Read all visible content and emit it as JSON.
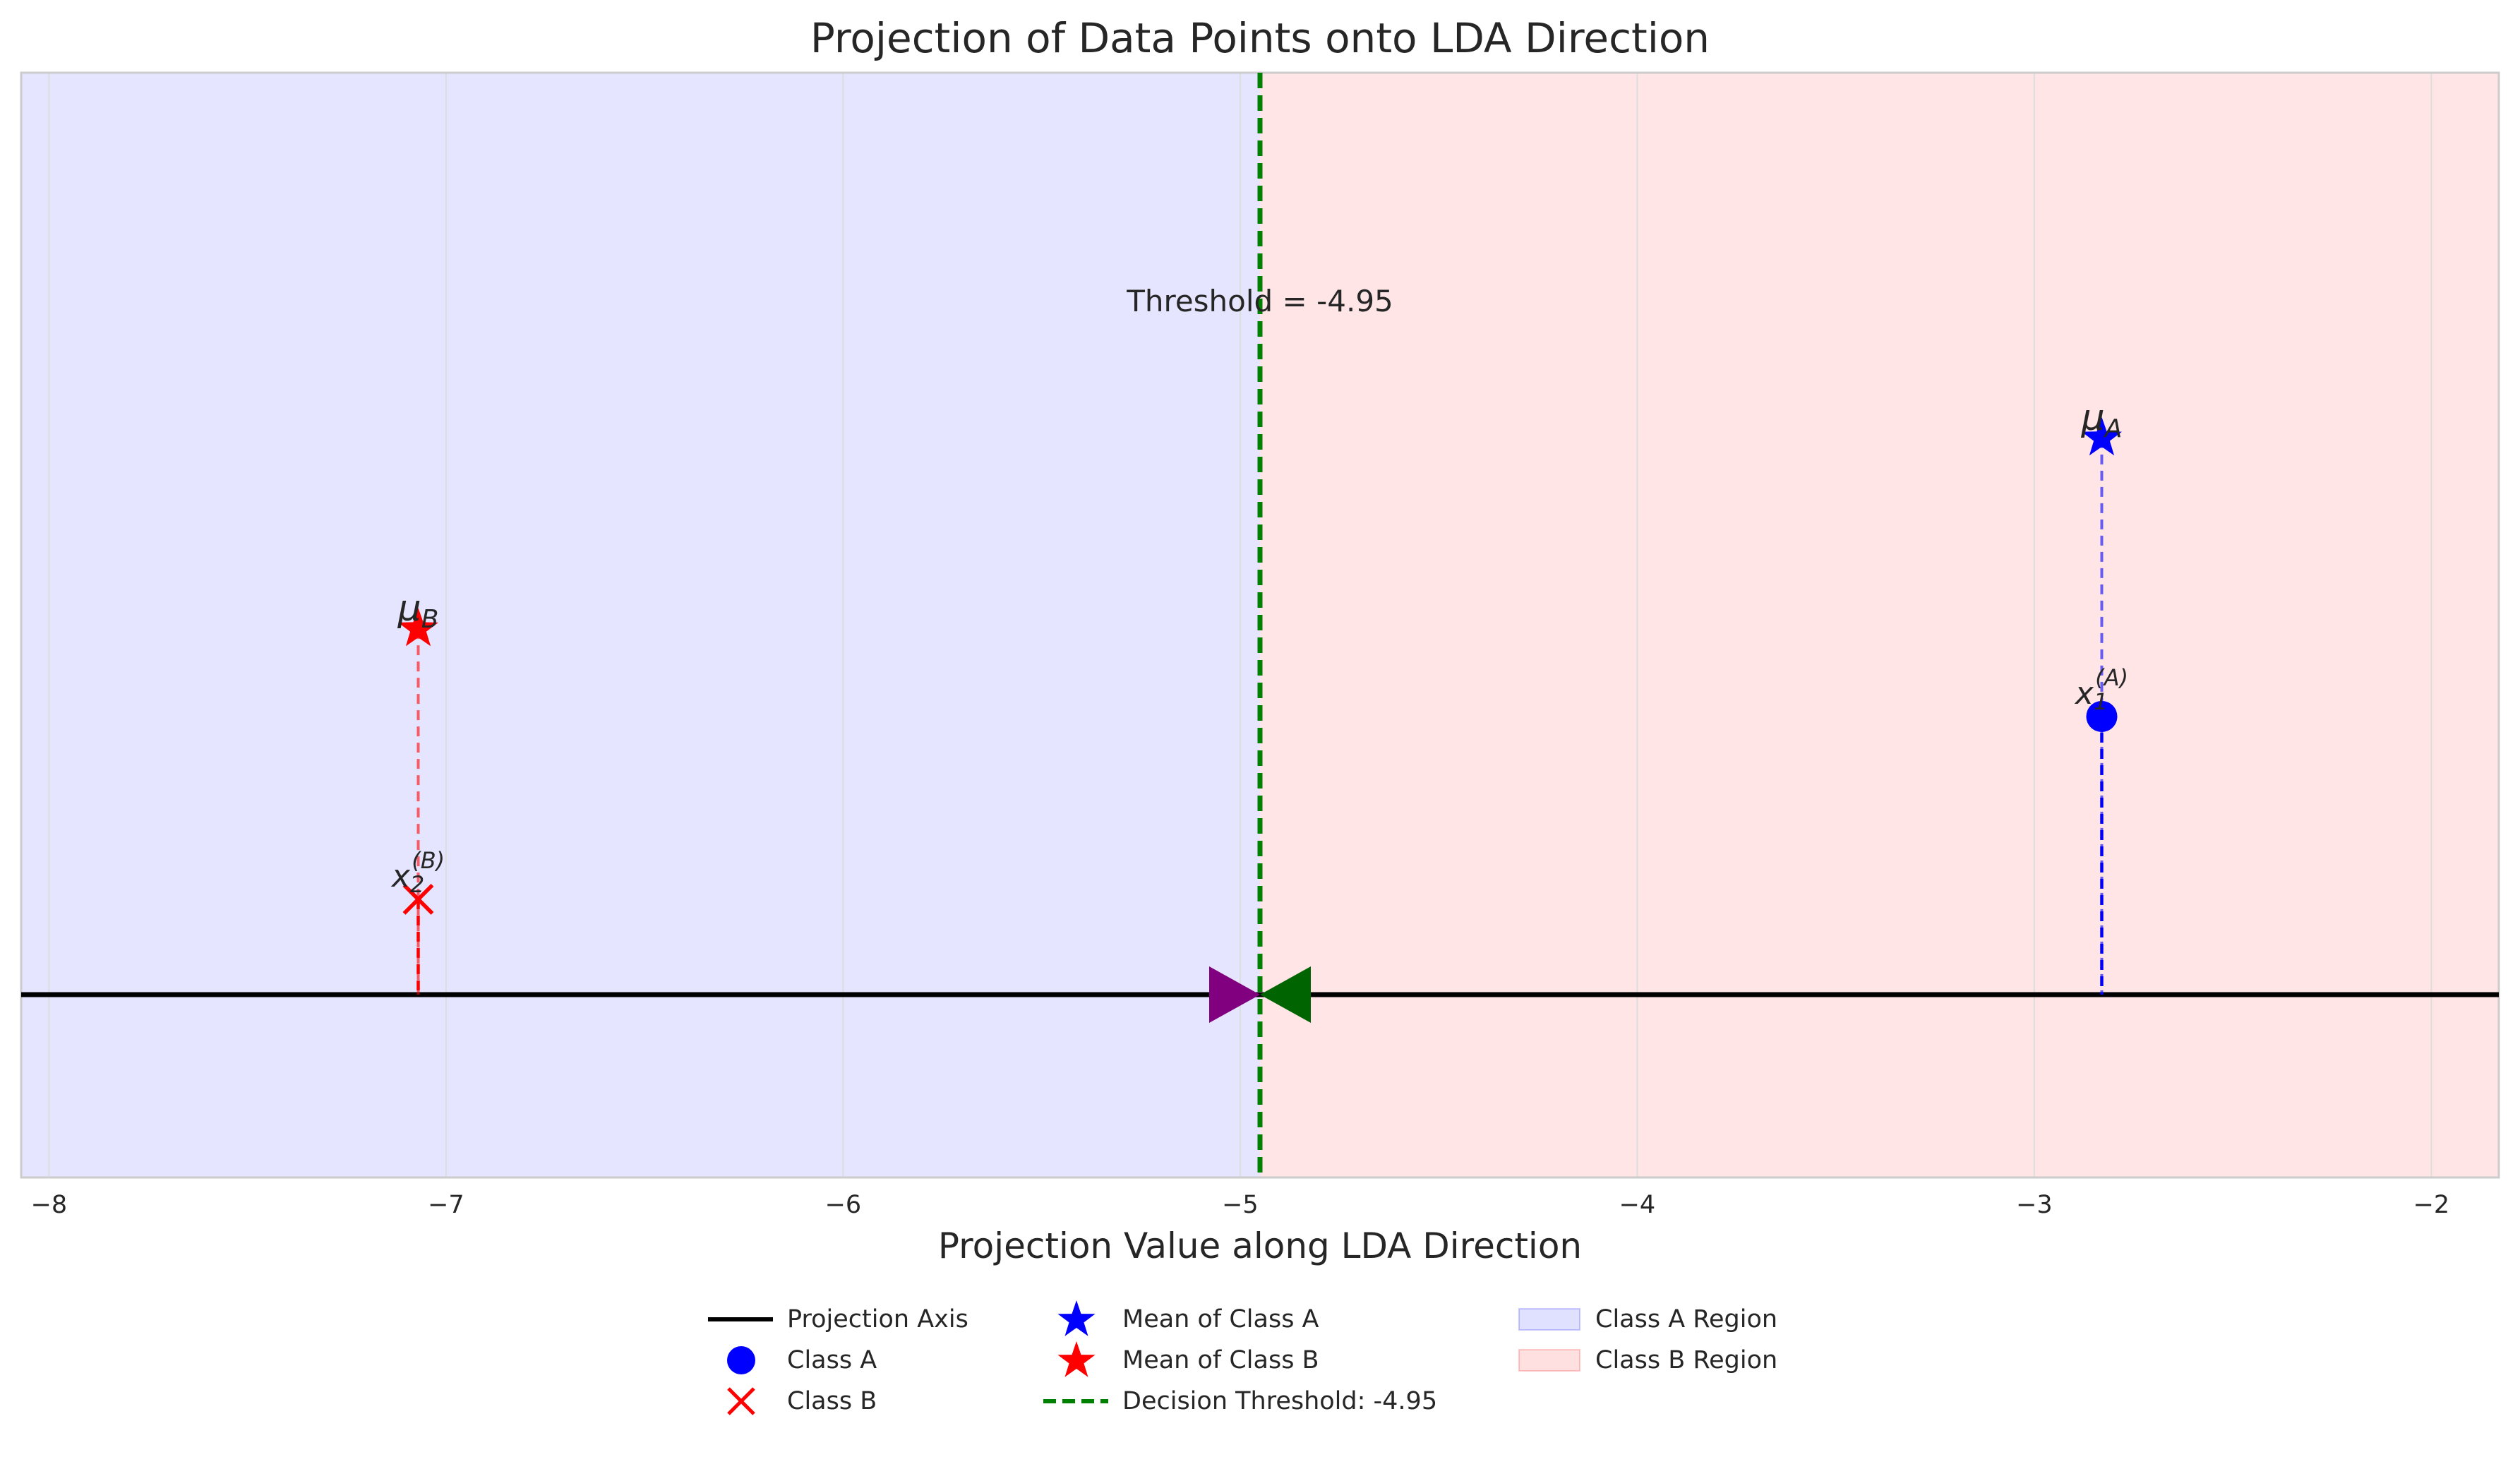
{
  "chart_data": {
    "type": "scatter",
    "title": "Projection of Data Points onto LDA Direction",
    "xlabel": "Projection Value along LDA Direction",
    "ylabel": "",
    "xlim": [
      -8.07,
      -1.83
    ],
    "ylim": [
      -0.23,
      1.16
    ],
    "x_ticks": [
      -8,
      -7,
      -6,
      -5,
      -4,
      -3,
      -2
    ],
    "x_tick_labels": [
      "−8",
      "−7",
      "−6",
      "−5",
      "−4",
      "−3",
      "−2"
    ],
    "grid": true,
    "threshold": {
      "value": -4.95,
      "annotation": "Threshold = -4.95",
      "color": "#008000"
    },
    "regions": [
      {
        "name": "Class A Region",
        "x_range": [
          -8.07,
          -4.95
        ],
        "color": "#0000ff",
        "alpha": 0.1
      },
      {
        "name": "Class B Region",
        "x_range": [
          -4.95,
          -1.83
        ],
        "color": "#ff0000",
        "alpha": 0.1
      }
    ],
    "projection_axis": {
      "y": 0.0,
      "color": "#000000"
    },
    "axis_arrows": [
      {
        "x": -4.95,
        "direction": "right",
        "color": "#800080"
      },
      {
        "x": -4.95,
        "direction": "left",
        "color": "#006400"
      }
    ],
    "points": [
      {
        "series": "Class A",
        "label": "x",
        "sub": "1",
        "sup": "(A)",
        "x": -2.83,
        "y": 0.35,
        "marker": "circle",
        "color": "#0000ff"
      },
      {
        "series": "Class B",
        "label": "x",
        "sub": "2",
        "sup": "(B)",
        "x": -7.07,
        "y": 0.12,
        "marker": "x",
        "color": "#ff0000"
      }
    ],
    "means": [
      {
        "series": "Mean of Class A",
        "label": "μ",
        "sub": "A",
        "x": -2.83,
        "y": 0.7,
        "color": "#0000ff"
      },
      {
        "series": "Mean of Class B",
        "label": "μ",
        "sub": "B",
        "x": -7.07,
        "y": 0.46,
        "color": "#ff0000"
      }
    ],
    "legend": {
      "placement": "bottom-center",
      "entries": [
        {
          "label": "Projection Axis",
          "kind": "line",
          "color": "#000000"
        },
        {
          "label": "Class A",
          "kind": "circle",
          "color": "#0000ff"
        },
        {
          "label": "Class B",
          "kind": "x",
          "color": "#ff0000"
        },
        {
          "label": "Mean of Class A",
          "kind": "star",
          "color": "#0000ff"
        },
        {
          "label": "Mean of Class B",
          "kind": "star",
          "color": "#ff0000"
        },
        {
          "label": "Decision Threshold: -4.95",
          "kind": "dashed",
          "color": "#008000"
        },
        {
          "label": "Class A Region",
          "kind": "patch",
          "color": "#0000ff"
        },
        {
          "label": "Class B Region",
          "kind": "patch",
          "color": "#ff0000"
        }
      ]
    }
  }
}
